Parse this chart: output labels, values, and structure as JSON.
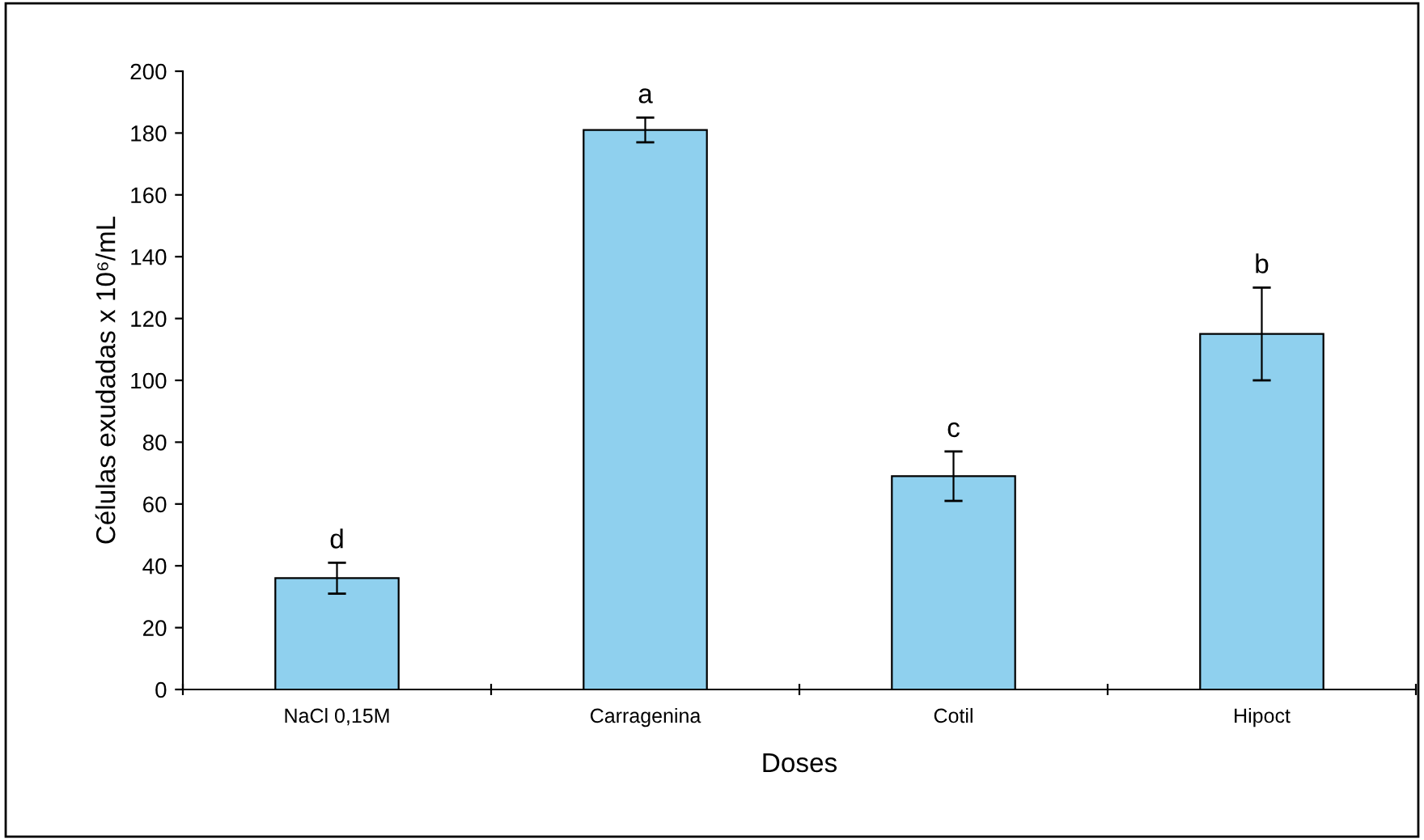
{
  "chart_data": {
    "type": "bar",
    "xlabel": "Doses",
    "ylabel": "Células exudadas x 10⁶/mL",
    "categories": [
      "NaCl 0,15M",
      "Carragenina",
      "Cotil",
      "Hipoct"
    ],
    "values": [
      36,
      181,
      69,
      115
    ],
    "errors": [
      5,
      4,
      8,
      15
    ],
    "color": "#8fd0ee",
    "ylim": [
      0,
      200
    ],
    "yticks": [
      0,
      20,
      40,
      60,
      80,
      100,
      120,
      140,
      160,
      180,
      200
    ],
    "grid": false,
    "legend": false,
    "annotations": [
      "d",
      "a",
      "c",
      "b"
    ]
  }
}
